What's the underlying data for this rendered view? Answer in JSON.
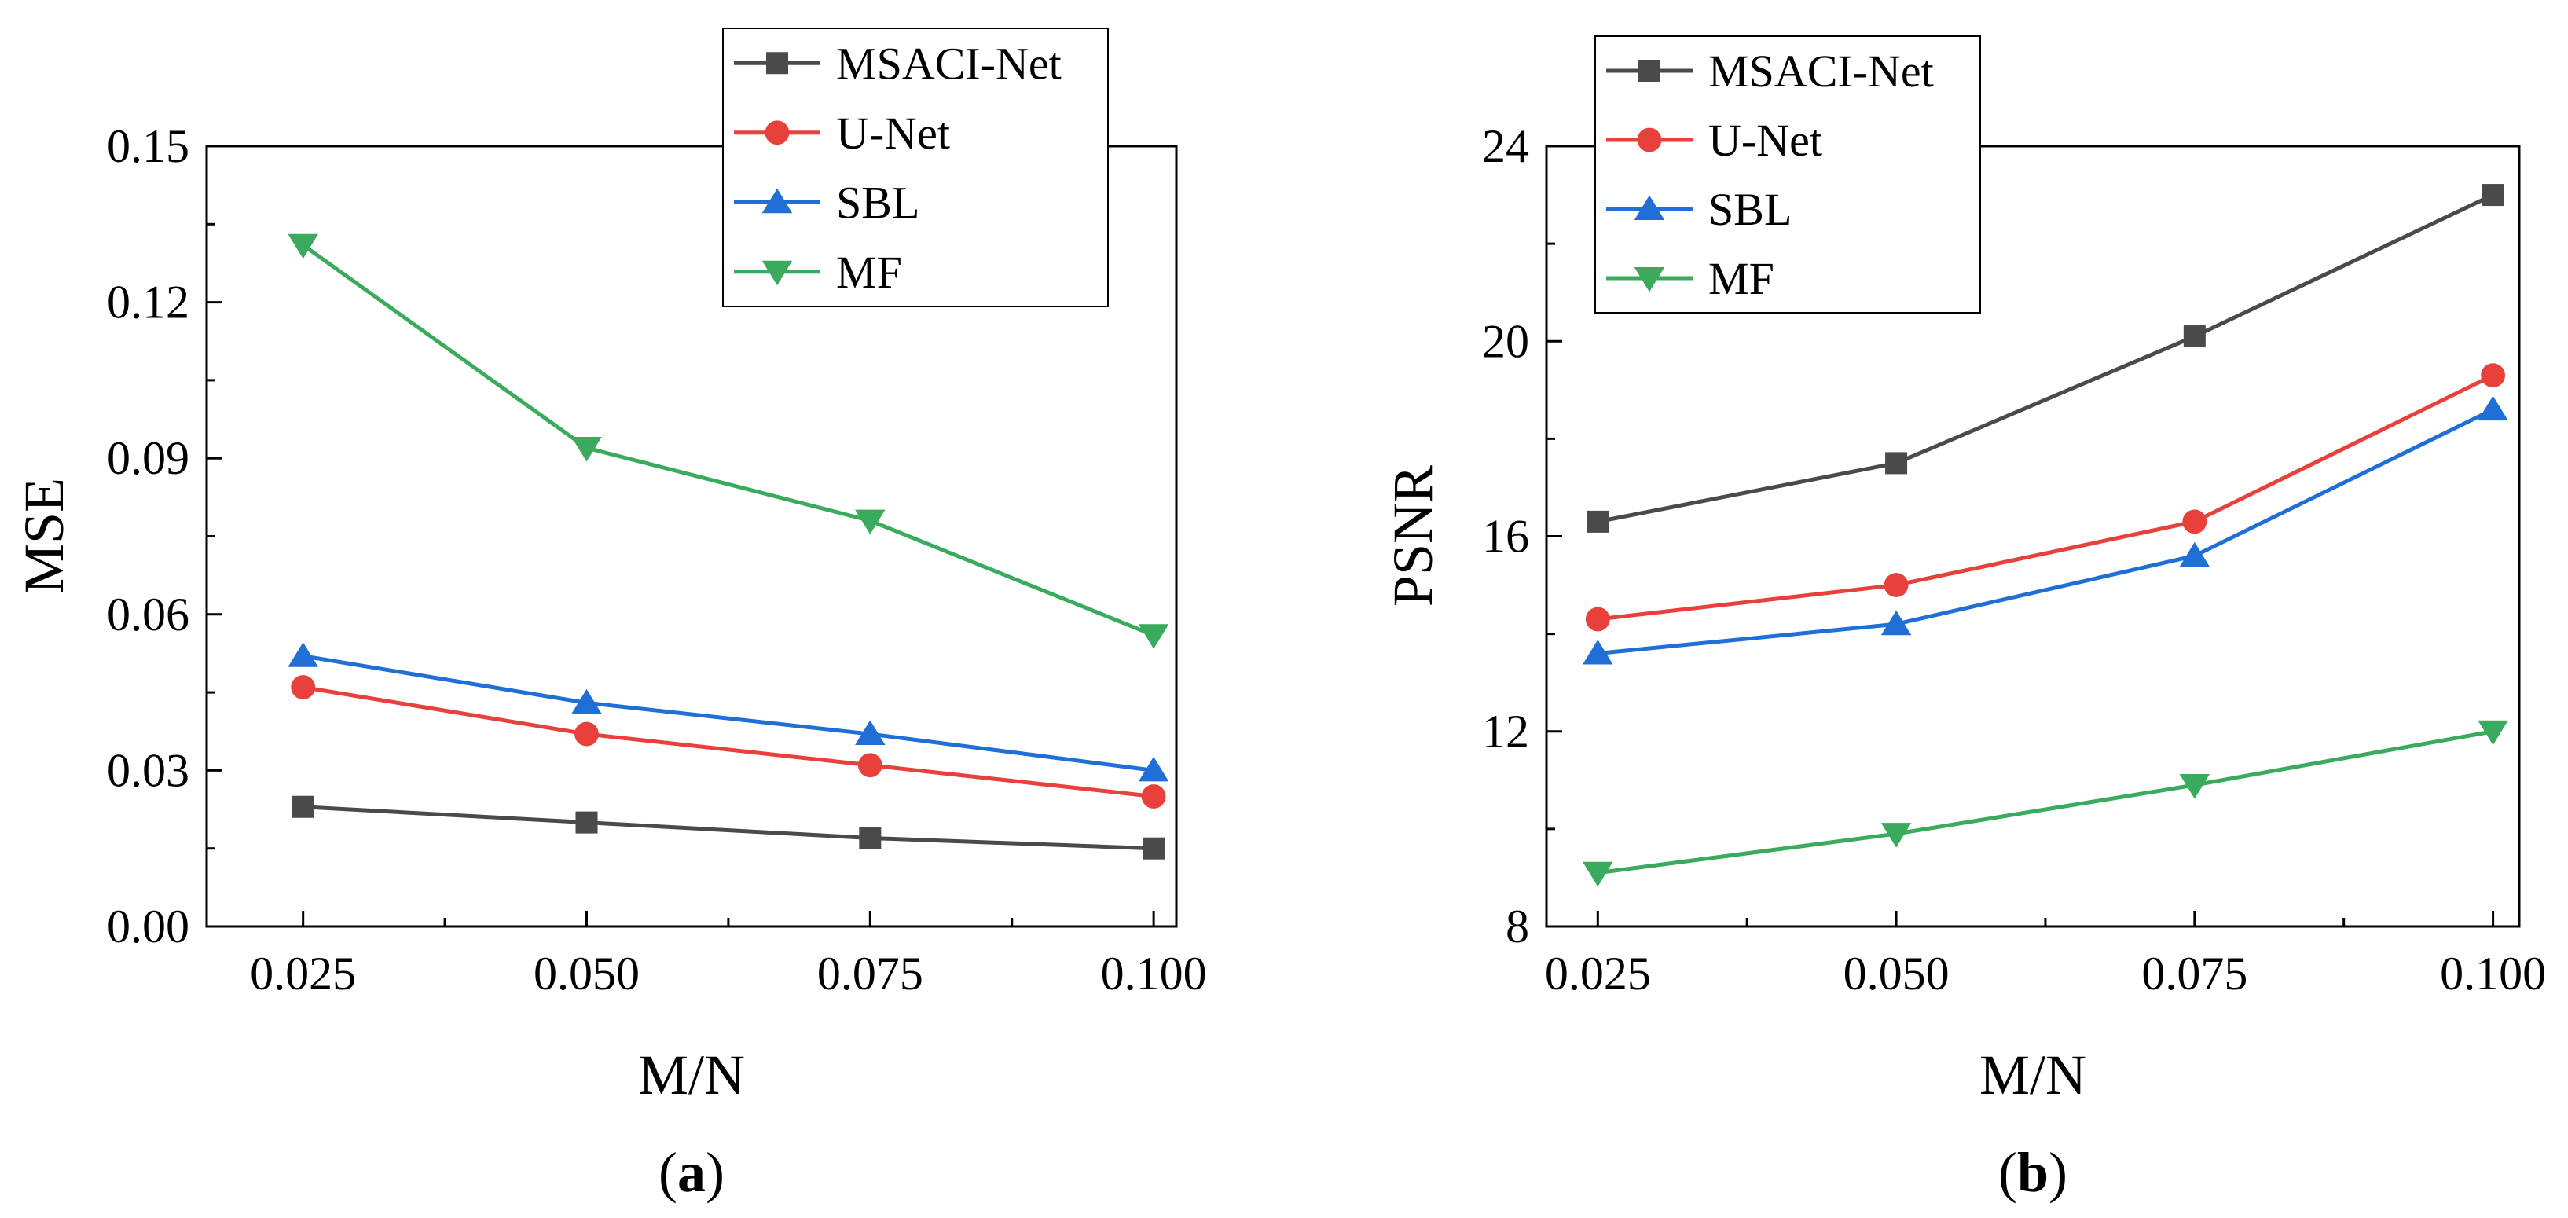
{
  "chart_data": [
    {
      "type": "line",
      "panel": "a",
      "caption": {
        "open": "(",
        "letter": "a",
        "close": ")"
      },
      "xlabel": "M/N",
      "ylabel": "MSE",
      "x": [
        0.025,
        0.05,
        0.075,
        0.1
      ],
      "xtick_labels": [
        "0.025",
        "0.050",
        "0.075",
        "0.100"
      ],
      "xlim": [
        0.0165,
        0.102
      ],
      "ylim": [
        0,
        0.15
      ],
      "yticks": [
        0,
        0.03,
        0.06,
        0.09,
        0.12,
        0.15
      ],
      "ytick_labels": [
        "0.00",
        "0.03",
        "0.06",
        "0.09",
        "0.12",
        "0.15"
      ],
      "legend_position": "top-right",
      "series": [
        {
          "name": "MSACI-Net",
          "color": "#4a4a4a",
          "marker": "square",
          "values": [
            0.023,
            0.02,
            0.017,
            0.015
          ]
        },
        {
          "name": "U-Net",
          "color": "#e8413c",
          "marker": "circle",
          "values": [
            0.046,
            0.037,
            0.031,
            0.025
          ]
        },
        {
          "name": "SBL",
          "color": "#1f6fd6",
          "marker": "triangle-up",
          "values": [
            0.052,
            0.043,
            0.037,
            0.03
          ]
        },
        {
          "name": "MF",
          "color": "#3aaa5c",
          "marker": "triangle-down",
          "values": [
            0.131,
            0.092,
            0.078,
            0.056
          ]
        }
      ]
    },
    {
      "type": "line",
      "panel": "b",
      "caption": {
        "open": "(",
        "letter": "b",
        "close": ")"
      },
      "xlabel": "M/N",
      "ylabel": "PSNR",
      "x": [
        0.025,
        0.05,
        0.075,
        0.1
      ],
      "xtick_labels": [
        "0.025",
        "0.050",
        "0.075",
        "0.100"
      ],
      "xlim": [
        0.0207,
        0.1022
      ],
      "ylim": [
        8,
        24
      ],
      "yticks": [
        8,
        12,
        16,
        20,
        24
      ],
      "ytick_labels": [
        "8",
        "12",
        "16",
        "20",
        "24"
      ],
      "legend_position": "top-left",
      "series": [
        {
          "name": "MSACI-Net",
          "color": "#4a4a4a",
          "marker": "square",
          "values": [
            16.3,
            17.5,
            20.1,
            23.0
          ]
        },
        {
          "name": "U-Net",
          "color": "#e8413c",
          "marker": "circle",
          "values": [
            14.3,
            15.0,
            16.3,
            19.3
          ]
        },
        {
          "name": "SBL",
          "color": "#1f6fd6",
          "marker": "triangle-up",
          "values": [
            13.6,
            14.2,
            15.6,
            18.6
          ]
        },
        {
          "name": "MF",
          "color": "#3aaa5c",
          "marker": "triangle-down",
          "values": [
            9.1,
            9.9,
            10.9,
            12.0
          ]
        }
      ]
    }
  ]
}
